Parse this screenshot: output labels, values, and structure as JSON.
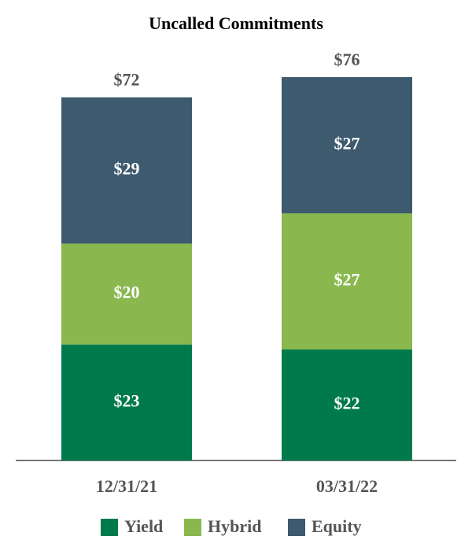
{
  "chart_data": {
    "type": "stacked_bar",
    "title": "Uncalled Commitments",
    "categories": [
      "12/31/21",
      "03/31/22"
    ],
    "series": [
      {
        "name": "Yield",
        "color": "#007a4d",
        "values": [
          23,
          22
        ],
        "value_labels": [
          "$23",
          "$22"
        ]
      },
      {
        "name": "Hybrid",
        "color": "#8ab84f",
        "values": [
          20,
          27
        ],
        "value_labels": [
          "$20",
          "$27"
        ]
      },
      {
        "name": "Equity",
        "color": "#3e5a6e",
        "values": [
          29,
          27
        ],
        "value_labels": [
          "$29",
          "$27"
        ]
      }
    ],
    "totals": [
      72,
      76
    ],
    "total_labels": [
      "$72",
      "$76"
    ]
  }
}
